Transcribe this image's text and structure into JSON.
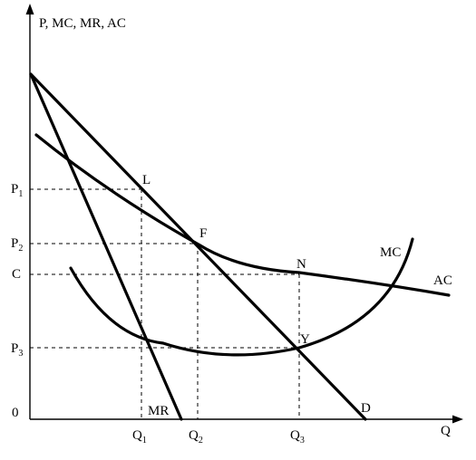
{
  "axes": {
    "y_title": "P, MC, MR, AC",
    "x_title": "Q",
    "origin": "0"
  },
  "price_labels": {
    "p1": {
      "main": "P",
      "sub": "1"
    },
    "p2": {
      "main": "P",
      "sub": "2"
    },
    "c": "C",
    "p3": {
      "main": "P",
      "sub": "3"
    }
  },
  "quantity_labels": {
    "q1": {
      "main": "Q",
      "sub": "1"
    },
    "q2": {
      "main": "Q",
      "sub": "2"
    },
    "q3": {
      "main": "Q",
      "sub": "3"
    }
  },
  "points": {
    "l": "L",
    "f": "F",
    "n": "N",
    "y": "Y"
  },
  "curves": {
    "mc": "MC",
    "ac": "AC",
    "mr": "MR",
    "d": "D"
  }
}
